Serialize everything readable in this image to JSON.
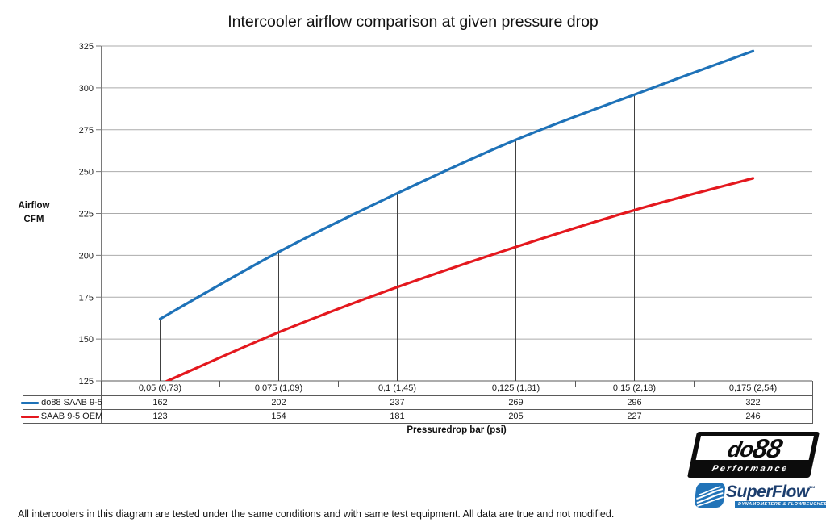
{
  "page": {
    "title": "Intercooler airflow comparison at given pressure drop",
    "footer_note": "All intercoolers in this diagram are tested under the same conditions and with same test equipment. All data are true and not modified."
  },
  "chart_data": {
    "type": "line",
    "title": "Intercooler airflow comparison at given pressure drop",
    "categories": [
      "0,05 (0,73)",
      "0,075 (1,09)",
      "0,1 (1,45)",
      "0,125 (1,81)",
      "0,15 (2,18)",
      "0,175 (2,54)"
    ],
    "series": [
      {
        "name": "do88 SAAB 9-5",
        "color": "#1e72b8",
        "values": [
          162,
          202,
          237,
          269,
          296,
          322
        ]
      },
      {
        "name": "SAAB 9-5 OEM",
        "color": "#e4181e",
        "values": [
          123,
          154,
          181,
          205,
          227,
          246
        ]
      }
    ],
    "xlabel": "Pressuredrop bar (psi)",
    "ylabel": "Airflow CFM",
    "ylabel_lines": [
      "Airflow",
      "CFM"
    ],
    "ylim": [
      125,
      325
    ],
    "y_tick_step": 25,
    "grid": "horizontal-only",
    "legend_position": "data-table-left",
    "annotations": "vertical drop lines from do88 series points down to x-axis",
    "colors": {
      "gridline": "#ababab",
      "axis": "#7a7a7a",
      "drop_line": "#404040",
      "table_border": "#5a5a5a"
    }
  },
  "logos": {
    "do88": {
      "part1": "do",
      "part2": "88",
      "sub_text": "Performance"
    },
    "superflow": {
      "name_text": "SuperFlow",
      "trademark": "™",
      "sub_text": "DYNAMOMETERS & FLOWBENCHES"
    }
  }
}
